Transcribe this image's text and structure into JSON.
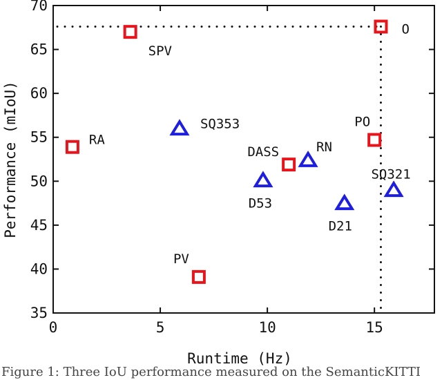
{
  "chart_data": {
    "type": "scatter",
    "title": "",
    "xlabel": "Runtime (Hz)",
    "ylabel": "Performance (mIoU)",
    "xlim": [
      0,
      17.8
    ],
    "ylim": [
      35,
      70
    ],
    "xticks": [
      0,
      5,
      10,
      15
    ],
    "yticks": [
      35,
      40,
      45,
      50,
      55,
      60,
      65,
      70
    ],
    "grid": false,
    "legend": "none",
    "series": [
      {
        "marker": "square",
        "color": "#e8141c",
        "points": [
          {
            "label": "SPV",
            "x": 3.6,
            "y": 67.0
          },
          {
            "label": "RA",
            "x": 0.9,
            "y": 53.9
          },
          {
            "label": "PV",
            "x": 6.8,
            "y": 39.1
          },
          {
            "label": "DASS",
            "x": 11.0,
            "y": 51.9
          },
          {
            "label": "PO",
            "x": 15.0,
            "y": 54.7
          },
          {
            "label": "O",
            "x": 15.3,
            "y": 67.6
          }
        ]
      },
      {
        "marker": "triangle",
        "color": "#1e1ee0",
        "points": [
          {
            "label": "SQ353",
            "x": 5.9,
            "y": 55.9
          },
          {
            "label": "D53",
            "x": 9.8,
            "y": 50.0
          },
          {
            "label": "RN",
            "x": 11.9,
            "y": 52.3
          },
          {
            "label": "D21",
            "x": 13.6,
            "y": 47.4
          },
          {
            "label": "SQ321",
            "x": 15.9,
            "y": 48.9
          }
        ]
      }
    ],
    "reference_lines": [
      {
        "orientation": "horizontal",
        "value": 67.6,
        "style": "dotted"
      },
      {
        "orientation": "vertical",
        "value": 15.3,
        "style": "dotted"
      }
    ]
  },
  "caption": "Figure 1: Three IoU performance measured on the SemanticKITTI"
}
